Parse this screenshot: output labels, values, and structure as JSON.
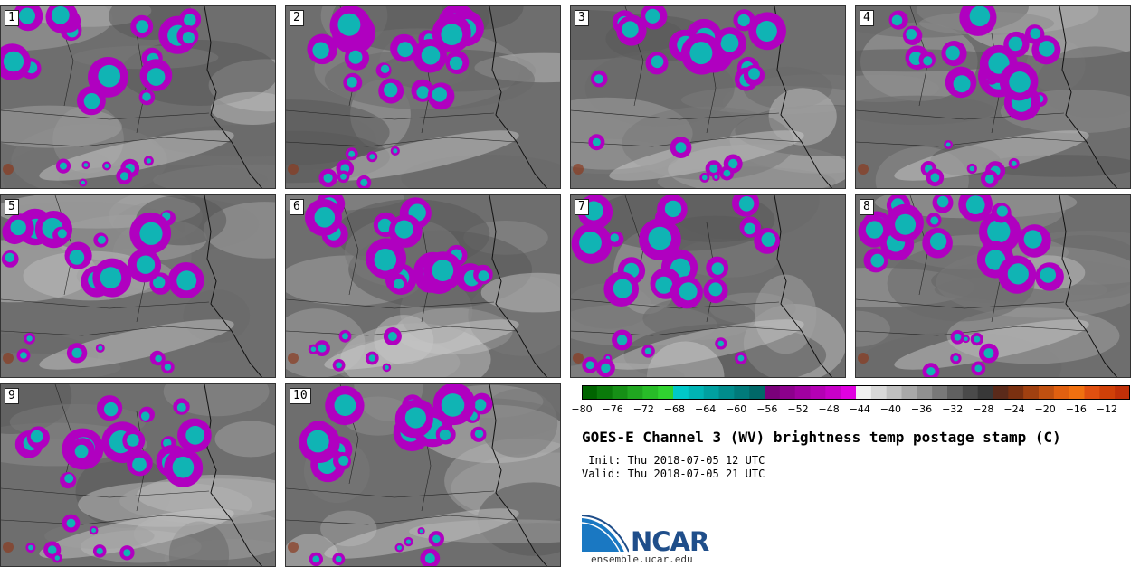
{
  "panels": [
    {
      "label": "1"
    },
    {
      "label": "2"
    },
    {
      "label": "3"
    },
    {
      "label": "4"
    },
    {
      "label": "5"
    },
    {
      "label": "6"
    },
    {
      "label": "7"
    },
    {
      "label": "8"
    },
    {
      "label": "9"
    },
    {
      "label": "10"
    }
  ],
  "colorbar": {
    "ticks": [
      "−80",
      "−76",
      "−72",
      "−68",
      "−64",
      "−60",
      "−56",
      "−52",
      "−48",
      "−44",
      "−40",
      "−36",
      "−32",
      "−28",
      "−24",
      "−20",
      "−16",
      "−12"
    ],
    "colors": [
      "#006400",
      "#0a7a0a",
      "#169016",
      "#20a620",
      "#28bc28",
      "#30d230",
      "#00c8c8",
      "#00b4b4",
      "#00a0a0",
      "#008c8c",
      "#007a7a",
      "#006868",
      "#7a007a",
      "#8c008c",
      "#a000a0",
      "#b400b4",
      "#c800c8",
      "#e000e0",
      "#f0f0f0",
      "#d8d8d8",
      "#c0c0c0",
      "#a8a8a8",
      "#909090",
      "#787878",
      "#606060",
      "#4a4a4a",
      "#383838",
      "#5a2a1a",
      "#7a3010",
      "#a04010",
      "#c05010",
      "#e06010",
      "#f07010",
      "#e05010",
      "#d04008",
      "#c03008"
    ]
  },
  "title": "GOES-E Channel 3 (WV) brightness temp postage stamp (C)",
  "init": " Init: Thu 2018-07-05 12 UTC",
  "valid": "Valid: Thu 2018-07-05 21 UTC",
  "logo": {
    "name": "NCAR",
    "site": "ensemble.ucar.edu"
  }
}
